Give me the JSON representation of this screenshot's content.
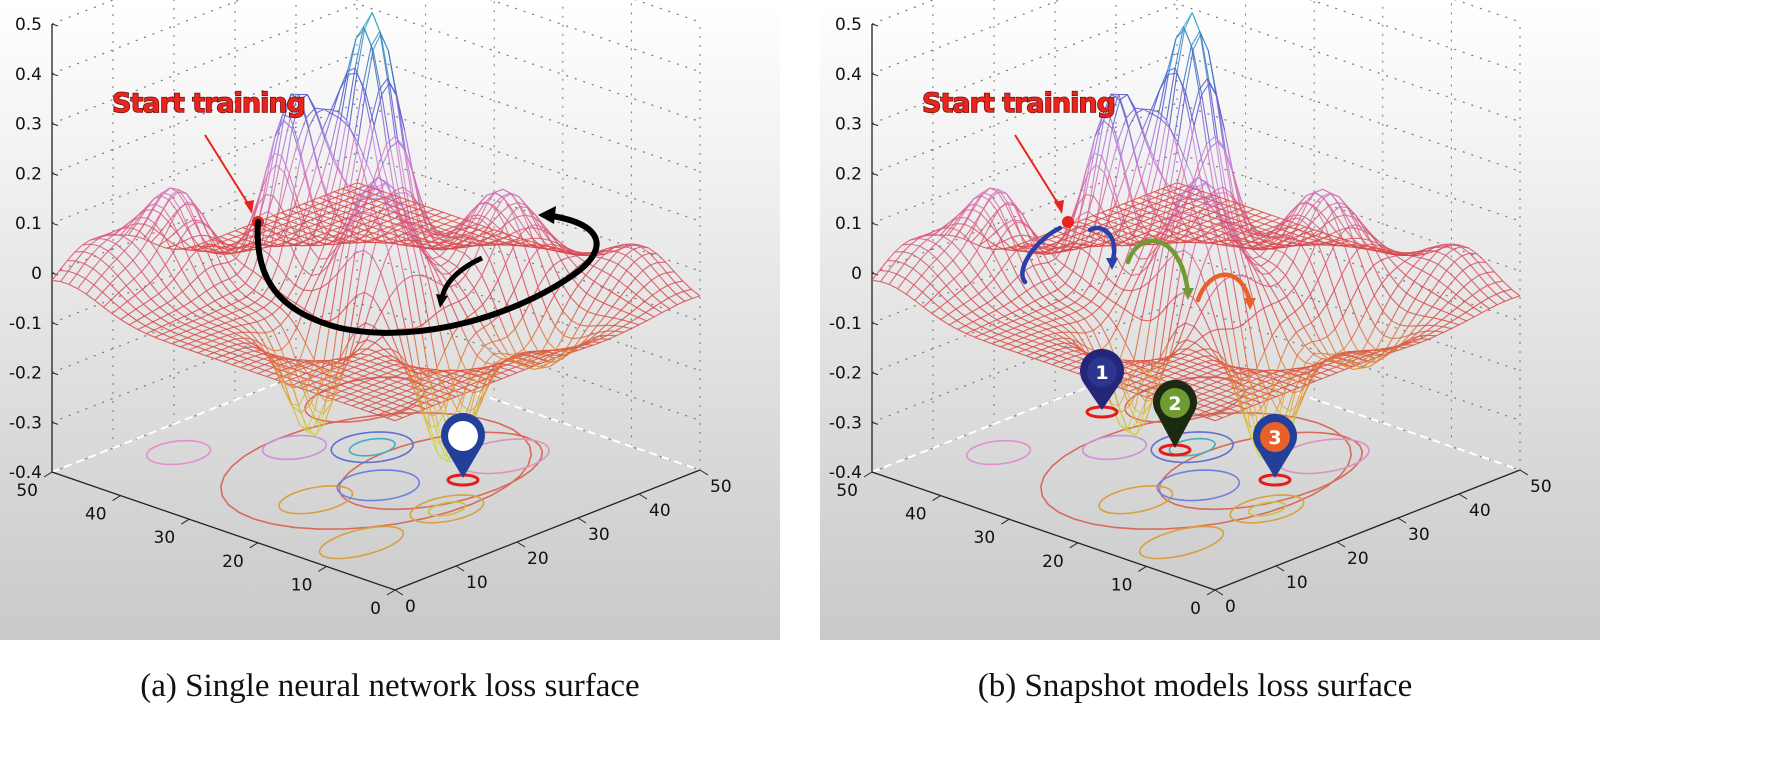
{
  "panels": [
    {
      "caption": "(a) Single neural network loss surface",
      "annotation": "Start training",
      "pins": [
        {
          "label": "",
          "color": "#22409a",
          "head": "#ffffff"
        }
      ]
    },
    {
      "caption": "(b) Snapshot models loss surface",
      "annotation": "Start training",
      "pins": [
        {
          "label": "1",
          "color": "#24267a",
          "head": "#2e3590"
        },
        {
          "label": "2",
          "color": "#1c2a12",
          "head": "#6f9a34"
        },
        {
          "label": "3",
          "color": "#22409a",
          "head": "#e8612a"
        }
      ]
    }
  ],
  "axes": {
    "z_ticks": [
      "0.5",
      "0.4",
      "0.3",
      "0.2",
      "0.1",
      "0",
      "-0.1",
      "-0.2",
      "-0.3",
      "-0.4"
    ],
    "y_ticks": [
      "50",
      "40",
      "30",
      "20",
      "10",
      "0"
    ],
    "x_ticks": [
      "0",
      "10",
      "20",
      "30",
      "40",
      "50"
    ],
    "z_range": [
      -0.4,
      0.5
    ],
    "xy_range": [
      0,
      50
    ]
  },
  "colors": {
    "background_top": "#ffffff",
    "background_bottom": "#c9c9c9",
    "start_marker": "#e8241c",
    "training_path": "#000000",
    "snapshot_arrows": [
      "#2b3fa8",
      "#6f9a34",
      "#e8612a"
    ]
  }
}
